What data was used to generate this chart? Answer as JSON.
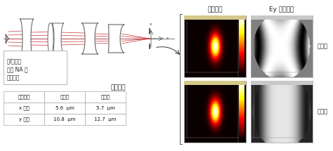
{
  "bg_color": "#ffffff",
  "title_col1": "焦点光斑",
  "title_col2": "Ey 分量相位",
  "label_right1": "有散射",
  "label_right2": "无散射",
  "table_headers": [
    "半高全宽",
    "有像散",
    "无像散"
  ],
  "table_rows": [
    [
      "x 方向",
      "5.6  μm",
      "5.7  μm"
    ],
    [
      "y 方向",
      "10.8  μm",
      "12.7  μm"
    ]
  ],
  "label_left1": "有/无像散",
  "label_left2": "的高 NA 激",
  "label_left3": "光二极管",
  "label_halfwidth": "半峰宽度",
  "white": "#ffffff",
  "black": "#000000",
  "ray_color": "#cc3333",
  "lens_edge": "#666666",
  "text_color": "#222222",
  "table_edge": "#aaaaaa"
}
